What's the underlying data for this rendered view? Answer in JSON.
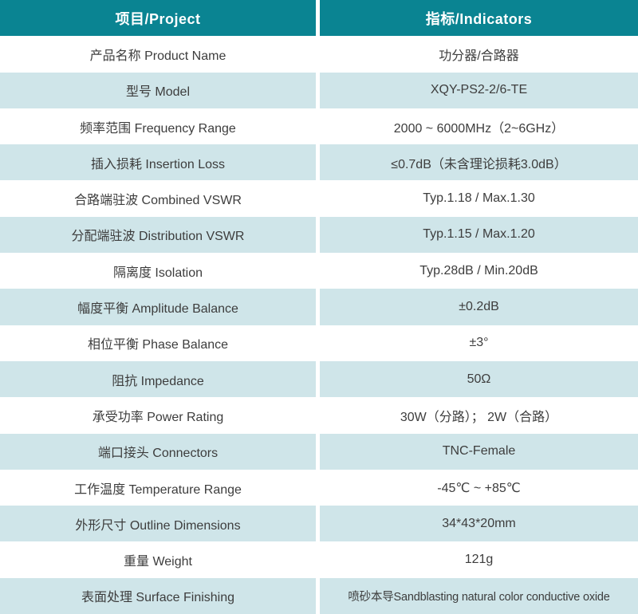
{
  "colors": {
    "header_bg": "#0a8492",
    "row_alt_bg": "#cfe5e9",
    "text": "#3d3d3d",
    "header_text": "#ffffff"
  },
  "table": {
    "header": {
      "project": "项目/Project",
      "indicators": "指标/Indicators"
    },
    "rows": [
      {
        "label": "产品名称 Product Name",
        "value": "功分器/合路器"
      },
      {
        "label": "型号 Model",
        "value": "XQY-PS2-2/6-TE"
      },
      {
        "label": "频率范围 Frequency Range",
        "value": "2000 ~ 6000MHz（2~6GHz）"
      },
      {
        "label": "插入损耗 Insertion Loss",
        "value": "≤0.7dB（未含理论损耗3.0dB）"
      },
      {
        "label": "合路端驻波 Combined VSWR",
        "value": "Typ.1.18 / Max.1.30"
      },
      {
        "label": "分配端驻波 Distribution VSWR",
        "value": "Typ.1.15 / Max.1.20"
      },
      {
        "label": "隔离度 Isolation",
        "value": "Typ.28dB / Min.20dB"
      },
      {
        "label": "幅度平衡 Amplitude Balance",
        "value": "±0.2dB"
      },
      {
        "label": "相位平衡 Phase Balance",
        "value": "±3°"
      },
      {
        "label": "阻抗 Impedance",
        "value": "50Ω"
      },
      {
        "label": "承受功率 Power Rating",
        "value": "30W（分路）； 2W（合路）"
      },
      {
        "label": "端口接头 Connectors",
        "value": "TNC-Female"
      },
      {
        "label": "工作温度 Temperature Range",
        "value": "-45℃ ~ +85℃"
      },
      {
        "label": "外形尺寸 Outline Dimensions",
        "value": "34*43*20mm"
      },
      {
        "label": "重量 Weight",
        "value": "121g"
      },
      {
        "label": "表面处理 Surface Finishing",
        "value": "喷砂本导Sandblasting natural color conductive oxide"
      }
    ]
  }
}
